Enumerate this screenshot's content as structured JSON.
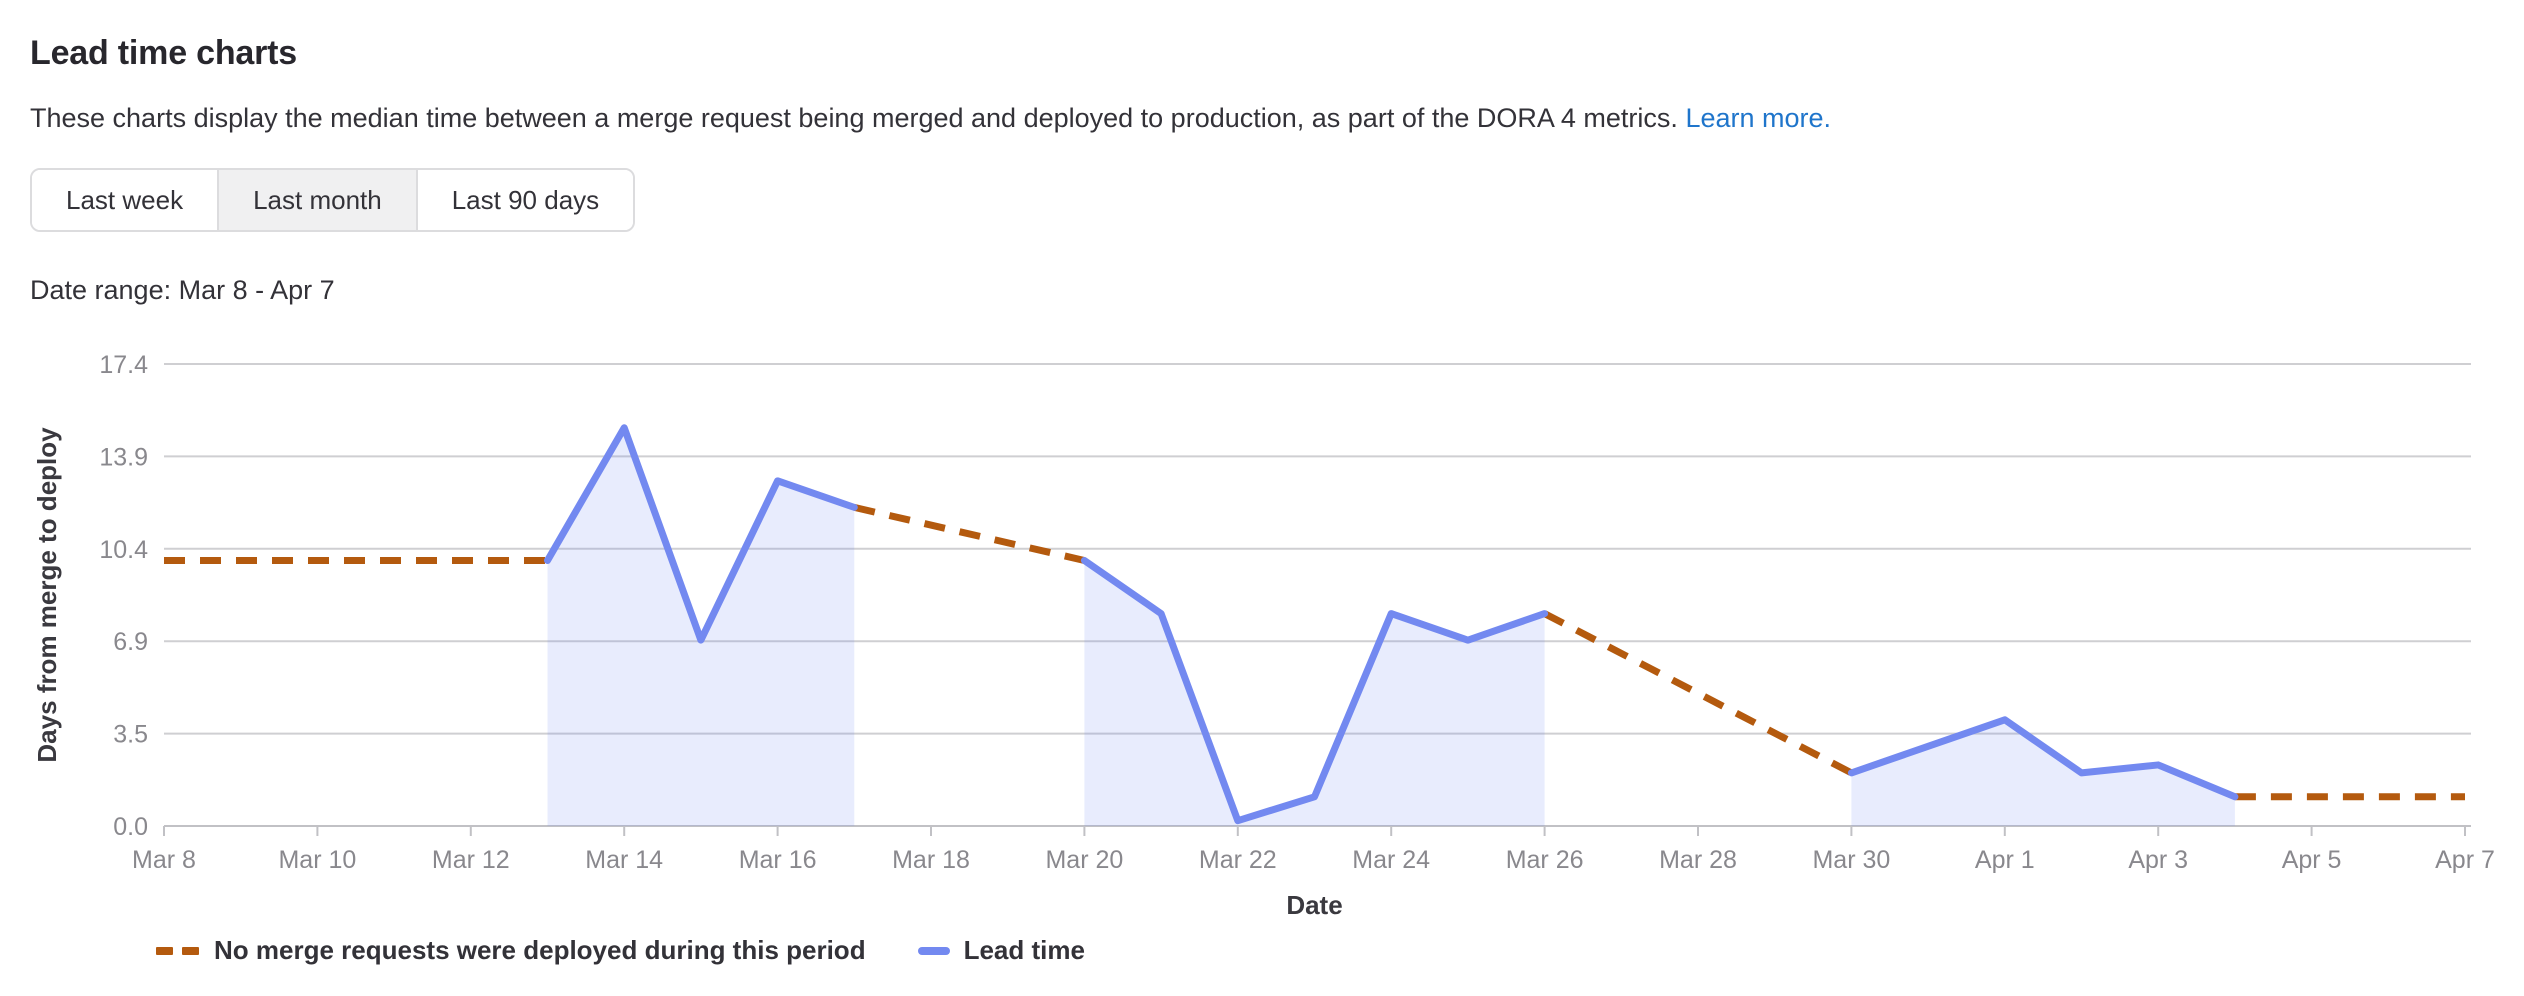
{
  "header": {
    "title": "Lead time charts",
    "description": "These charts display the median time between a merge request being merged and deployed to production, as part of the DORA 4 metrics.",
    "learn_more_label": "Learn more.",
    "link_color": "#1f75cb"
  },
  "controls": {
    "buttons": [
      {
        "label": "Last week",
        "selected": false
      },
      {
        "label": "Last month",
        "selected": true
      },
      {
        "label": "Last 90 days",
        "selected": false
      }
    ],
    "date_range_text": "Date range: Mar 8 - Apr 7"
  },
  "chart_data": {
    "type": "line",
    "title": "",
    "xlabel": "Date",
    "ylabel": "Days from merge to deploy",
    "ylim": [
      0,
      17.4
    ],
    "y_tick_labels": [
      "0.0",
      "3.5",
      "6.9",
      "10.4",
      "13.9",
      "17.4"
    ],
    "x_days_total": 30,
    "x_tick_days": [
      0,
      2,
      4,
      6,
      8,
      10,
      12,
      14,
      16,
      18,
      20,
      22,
      24,
      26,
      28,
      30
    ],
    "x_tick_labels": [
      "Mar 8",
      "Mar 10",
      "Mar 12",
      "Mar 14",
      "Mar 16",
      "Mar 18",
      "Mar 20",
      "Mar 22",
      "Mar 24",
      "Mar 26",
      "Mar 28",
      "Mar 30",
      "Apr 1",
      "Apr 3",
      "Apr 5",
      "Apr 7"
    ],
    "grid": true,
    "legend_position": "bottom-left",
    "colors": {
      "grid": "#cfcfd2",
      "axis": "#c1c1c5",
      "tick_text": "#89888d",
      "axis_title_text": "#3a393f"
    },
    "series": [
      {
        "name": "Lead time",
        "style": "solid",
        "color": "#7389f0",
        "fill_opacity": 0.16,
        "segments": [
          [
            {
              "day": 5,
              "date": "Mar 13",
              "value": 10.0
            },
            {
              "day": 6,
              "date": "Mar 14",
              "value": 15.0
            },
            {
              "day": 7,
              "date": "Mar 15",
              "value": 7.0
            },
            {
              "day": 8,
              "date": "Mar 16",
              "value": 13.0
            },
            {
              "day": 9,
              "date": "Mar 17",
              "value": 12.0
            }
          ],
          [
            {
              "day": 12,
              "date": "Mar 20",
              "value": 10.0
            },
            {
              "day": 13,
              "date": "Mar 21",
              "value": 8.0
            },
            {
              "day": 14,
              "date": "Mar 22",
              "value": 0.2
            },
            {
              "day": 15,
              "date": "Mar 23",
              "value": 1.1
            },
            {
              "day": 16,
              "date": "Mar 24",
              "value": 8.0
            },
            {
              "day": 17,
              "date": "Mar 25",
              "value": 7.0
            },
            {
              "day": 18,
              "date": "Mar 26",
              "value": 8.0
            }
          ],
          [
            {
              "day": 22,
              "date": "Mar 30",
              "value": 2.0
            },
            {
              "day": 23,
              "date": "Mar 31",
              "value": 3.0
            },
            {
              "day": 24,
              "date": "Apr 1",
              "value": 4.0
            },
            {
              "day": 25,
              "date": "Apr 2",
              "value": 2.0
            },
            {
              "day": 26,
              "date": "Apr 3",
              "value": 2.3
            },
            {
              "day": 27,
              "date": "Apr 4",
              "value": 1.1
            }
          ]
        ]
      },
      {
        "name": "No merge requests were deployed during this period",
        "style": "dashed",
        "color": "#b45a0e",
        "segments": [
          [
            {
              "day": 0,
              "date": "Mar 8",
              "value": 10.0
            },
            {
              "day": 5,
              "date": "Mar 13",
              "value": 10.0
            }
          ],
          [
            {
              "day": 9,
              "date": "Mar 17",
              "value": 12.0
            },
            {
              "day": 12,
              "date": "Mar 20",
              "value": 10.0
            }
          ],
          [
            {
              "day": 18,
              "date": "Mar 26",
              "value": 8.0
            },
            {
              "day": 22,
              "date": "Mar 30",
              "value": 2.0
            }
          ],
          [
            {
              "day": 27,
              "date": "Apr 4",
              "value": 1.1
            },
            {
              "day": 30,
              "date": "Apr 7",
              "value": 1.1
            }
          ]
        ]
      }
    ],
    "legend": [
      {
        "label": "No merge requests were deployed during this period",
        "swatch": "dashed-line",
        "color": "#b45a0e"
      },
      {
        "label": "Lead time",
        "swatch": "solid-line",
        "color": "#7389f0"
      }
    ]
  }
}
